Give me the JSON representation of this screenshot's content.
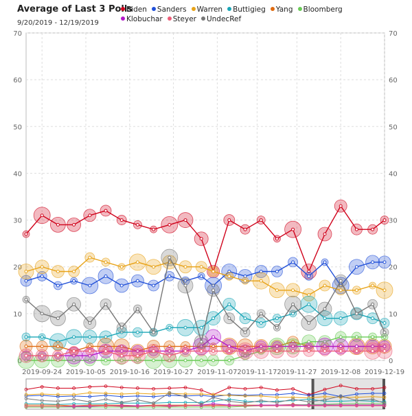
{
  "header": {
    "title": "Average of Last 3 Polls",
    "subtitle": "9/20/2019 - 12/19/2019"
  },
  "legend": [
    {
      "name": "Biden",
      "color": "#d0021b"
    },
    {
      "name": "Sanders",
      "color": "#1f4fd8"
    },
    {
      "name": "Warren",
      "color": "#e8a317"
    },
    {
      "name": "Buttigieg",
      "color": "#1aa6b7"
    },
    {
      "name": "Yang",
      "color": "#e06b10"
    },
    {
      "name": "Bloomberg",
      "color": "#6acb57"
    },
    {
      "name": "Klobuchar",
      "color": "#b318c9"
    },
    {
      "name": "Steyer",
      "color": "#ee5d78"
    },
    {
      "name": "UndecRef",
      "color": "#777777"
    }
  ],
  "chart_data": {
    "type": "line",
    "title": "Average of Last 3 Polls",
    "subtitle": "9/20/2019 - 12/19/2019",
    "x_start": "2019-09-20",
    "x_end": "2019-12-19",
    "ylim": [
      0,
      70
    ],
    "y_ticks": [
      0,
      10,
      20,
      30,
      40,
      50,
      60,
      70
    ],
    "x_ticks": [
      "2019-09-24",
      "2019-10-05",
      "2019-10-16",
      "2019-10-27",
      "2019-11-07",
      "2019-11-17",
      "2019-11-27",
      "2019-12-08",
      "2019-12-19"
    ],
    "grid": true,
    "legend_position": "top",
    "x": [
      "2019-09-20",
      "2019-09-24",
      "2019-09-28",
      "2019-10-02",
      "2019-10-06",
      "2019-10-10",
      "2019-10-14",
      "2019-10-18",
      "2019-10-22",
      "2019-10-26",
      "2019-10-30",
      "2019-11-03",
      "2019-11-06",
      "2019-11-10",
      "2019-11-14",
      "2019-11-18",
      "2019-11-22",
      "2019-11-26",
      "2019-11-30",
      "2019-12-04",
      "2019-12-08",
      "2019-12-12",
      "2019-12-16",
      "2019-12-19"
    ],
    "series": [
      {
        "name": "Biden",
        "color": "#d0021b",
        "values": [
          27,
          31,
          29,
          29,
          31,
          32,
          30,
          29,
          28,
          29,
          30,
          26,
          19,
          30,
          28,
          30,
          26,
          28,
          19,
          27,
          33,
          28,
          28,
          30
        ]
      },
      {
        "name": "Sanders",
        "color": "#1f4fd8",
        "values": [
          17,
          18,
          16,
          17,
          16,
          18,
          16,
          17,
          16,
          18,
          17,
          18,
          16,
          19,
          18,
          19,
          19,
          21,
          18,
          21,
          16,
          20,
          21,
          21
        ]
      },
      {
        "name": "Warren",
        "color": "#e8a317",
        "values": [
          19,
          20,
          19,
          19,
          22,
          21,
          20,
          21,
          20,
          21,
          20,
          20,
          19,
          18,
          17,
          17,
          15,
          15,
          14,
          16,
          15,
          15,
          16,
          15
        ]
      },
      {
        "name": "Buttigieg",
        "color": "#1aa6b7",
        "values": [
          5,
          5,
          4,
          5,
          5,
          5,
          6,
          6,
          6,
          7,
          7,
          7,
          9,
          12,
          9,
          8,
          9,
          10,
          12,
          9,
          9,
          10,
          9,
          8
        ]
      },
      {
        "name": "Yang",
        "color": "#e06b10",
        "values": [
          3,
          3,
          3,
          2,
          3,
          3,
          3,
          2,
          3,
          3,
          3,
          3,
          3,
          3,
          3,
          3,
          3,
          4,
          3,
          3,
          3,
          3,
          3,
          3
        ]
      },
      {
        "name": "Bloomberg",
        "color": "#6acb57",
        "values": [
          0,
          0,
          0,
          0,
          0,
          0,
          0,
          0,
          0,
          0,
          0,
          0,
          0,
          0,
          1,
          2,
          3,
          3,
          4,
          4,
          5,
          5,
          5,
          5
        ]
      },
      {
        "name": "Klobuchar",
        "color": "#b318c9",
        "values": [
          1,
          1,
          1,
          1,
          1,
          2,
          2,
          2,
          2,
          2,
          2,
          3,
          5,
          3,
          2,
          3,
          3,
          3,
          3,
          3,
          3,
          3,
          3,
          3
        ]
      },
      {
        "name": "Steyer",
        "color": "#ee5d78",
        "values": [
          1,
          1,
          1,
          2,
          2,
          2,
          1,
          1,
          2,
          1,
          2,
          2,
          2,
          2,
          2,
          2,
          2,
          2,
          2,
          2,
          2,
          2,
          2,
          2
        ]
      },
      {
        "name": "UndecRef",
        "color": "#777777",
        "values": [
          13,
          10,
          9,
          12,
          8,
          12,
          7,
          11,
          6,
          22,
          16,
          4,
          15,
          9,
          6,
          10,
          7,
          12,
          8,
          11,
          17,
          10,
          12,
          6
        ]
      }
    ]
  }
}
